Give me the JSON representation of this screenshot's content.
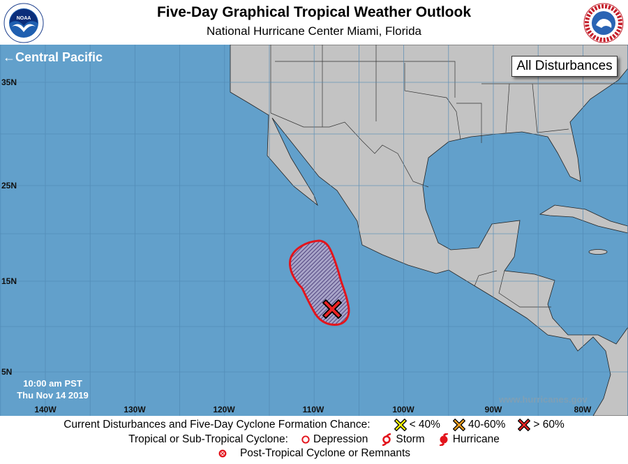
{
  "header": {
    "title": "Five-Day Graphical Tropical Weather Outlook",
    "subtitle": "National Hurricane Center  Miami, Florida"
  },
  "logos": {
    "left": "NOAA",
    "right": "National Weather Service"
  },
  "map": {
    "basin_link": "←Central Pacific",
    "view_label": "All Disturbances",
    "latitude_labels": [
      "35N",
      "25N",
      "15N",
      "5N"
    ],
    "longitude_labels": [
      "140W",
      "130W",
      "120W",
      "110W",
      "100W",
      "90W",
      "80W"
    ],
    "issue_time": "10:00 am PST",
    "issue_date": "Thu Nov 14 2019",
    "website": "www.hurricanes.gov",
    "colors": {
      "ocean": "#62a0cb",
      "land": "#c3c3c3",
      "area_outline": "#e3141c",
      "marker_high": "#ee2222"
    },
    "disturbances": [
      {
        "formation_chance_category": "> 60%",
        "marker": "red-x"
      }
    ]
  },
  "legend": {
    "row1_label": "Current Disturbances and Five-Day Cyclone Formation Chance:",
    "low": "< 40%",
    "medium": "40-60%",
    "high": "> 60%",
    "low_color": "#f5f500",
    "medium_color": "#f5a020",
    "high_color": "#ee2222",
    "row2_label": "Tropical or Sub-Tropical Cyclone:",
    "depression": "Depression",
    "storm": "Storm",
    "hurricane": "Hurricane",
    "row3_label": "Post-Tropical Cyclone or Remnants"
  }
}
